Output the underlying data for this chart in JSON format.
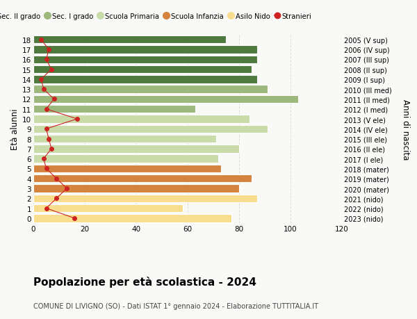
{
  "ages": [
    0,
    1,
    2,
    3,
    4,
    5,
    6,
    7,
    8,
    9,
    10,
    11,
    12,
    13,
    14,
    15,
    16,
    17,
    18
  ],
  "bar_values": [
    77,
    58,
    87,
    80,
    85,
    73,
    72,
    80,
    71,
    91,
    84,
    63,
    103,
    91,
    87,
    85,
    87,
    87,
    75
  ],
  "stranieri_values": [
    16,
    5,
    9,
    13,
    9,
    5,
    4,
    7,
    6,
    5,
    17,
    5,
    8,
    4,
    3,
    7,
    5,
    6,
    3
  ],
  "bar_colors": [
    "#f9dd8f",
    "#f9dd8f",
    "#f9dd8f",
    "#d4843e",
    "#d4843e",
    "#d4843e",
    "#c8dba8",
    "#c8dba8",
    "#c8dba8",
    "#c8dba8",
    "#c8dba8",
    "#9cb87c",
    "#9cb87c",
    "#9cb87c",
    "#4e7a3e",
    "#4e7a3e",
    "#4e7a3e",
    "#4e7a3e",
    "#4e7a3e"
  ],
  "right_labels": [
    "2023 (nido)",
    "2022 (nido)",
    "2021 (nido)",
    "2020 (mater)",
    "2019 (mater)",
    "2018 (mater)",
    "2017 (I ele)",
    "2016 (II ele)",
    "2015 (III ele)",
    "2014 (IV ele)",
    "2013 (V ele)",
    "2012 (I med)",
    "2011 (II med)",
    "2010 (III med)",
    "2009 (I sup)",
    "2008 (II sup)",
    "2007 (III sup)",
    "2006 (IV sup)",
    "2005 (V sup)"
  ],
  "ylabel": "Età alunni",
  "right_ylabel": "Anni di nascita",
  "title": "Popolazione per età scolastica - 2024",
  "subtitle": "COMUNE DI LIVIGNO (SO) - Dati ISTAT 1° gennaio 2024 - Elaborazione TUTTITALIA.IT",
  "xlim": [
    0,
    120
  ],
  "xticks": [
    0,
    20,
    40,
    60,
    80,
    100,
    120
  ],
  "legend_labels": [
    "Sec. II grado",
    "Sec. I grado",
    "Scuola Primaria",
    "Scuola Infanzia",
    "Asilo Nido",
    "Stranieri"
  ],
  "legend_colors": [
    "#4e7a3e",
    "#9cb87c",
    "#c8dba8",
    "#d4843e",
    "#f9dd8f",
    "#cc2222"
  ],
  "stranieri_color": "#cc2222",
  "bg_color": "#f9f9f7",
  "grid_color": "#dddddd"
}
